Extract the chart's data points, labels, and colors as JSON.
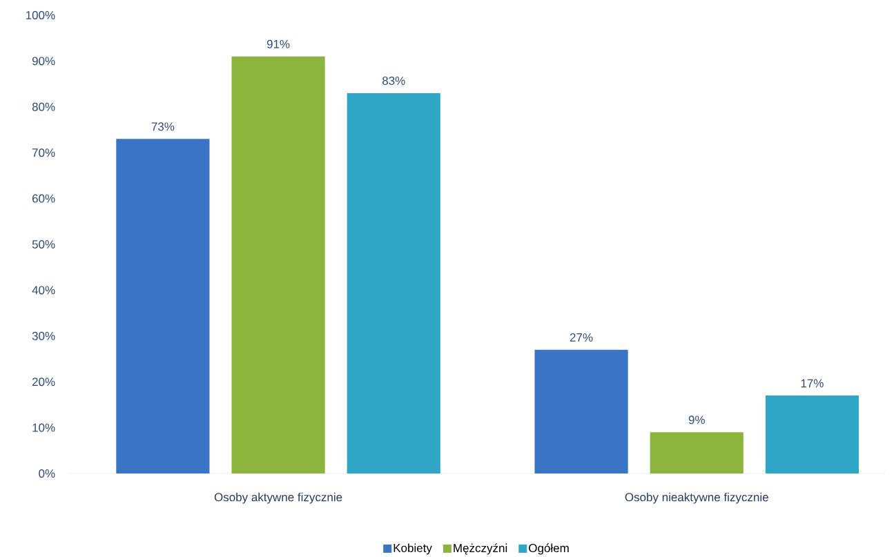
{
  "chart_data": {
    "type": "bar",
    "categories": [
      "Osoby aktywne fizycznie",
      "Osoby nieaktywne fizycznie"
    ],
    "series": [
      {
        "name": "Kobiety",
        "color": "#3a74c4",
        "values": [
          73,
          27
        ],
        "value_labels": [
          "73%",
          "27%"
        ]
      },
      {
        "name": "Mężczyźni",
        "color": "#8db43c",
        "values": [
          91,
          9
        ],
        "value_labels": [
          "91%",
          "9%"
        ]
      },
      {
        "name": "Ogółem",
        "color": "#2fa6c6",
        "values": [
          83,
          17
        ],
        "value_labels": [
          "83%",
          "17%"
        ]
      }
    ],
    "ylim": [
      0,
      100
    ],
    "yticks": [
      {
        "value": 0,
        "label": "0%"
      },
      {
        "value": 10,
        "label": "10%"
      },
      {
        "value": 20,
        "label": "20%"
      },
      {
        "value": 30,
        "label": "30%"
      },
      {
        "value": 40,
        "label": "40%"
      },
      {
        "value": 50,
        "label": "50%"
      },
      {
        "value": 60,
        "label": "60%"
      },
      {
        "value": 70,
        "label": "70%"
      },
      {
        "value": 80,
        "label": "80%"
      },
      {
        "value": 90,
        "label": "90%"
      },
      {
        "value": 100,
        "label": "100%"
      }
    ],
    "legend": "bottom"
  }
}
